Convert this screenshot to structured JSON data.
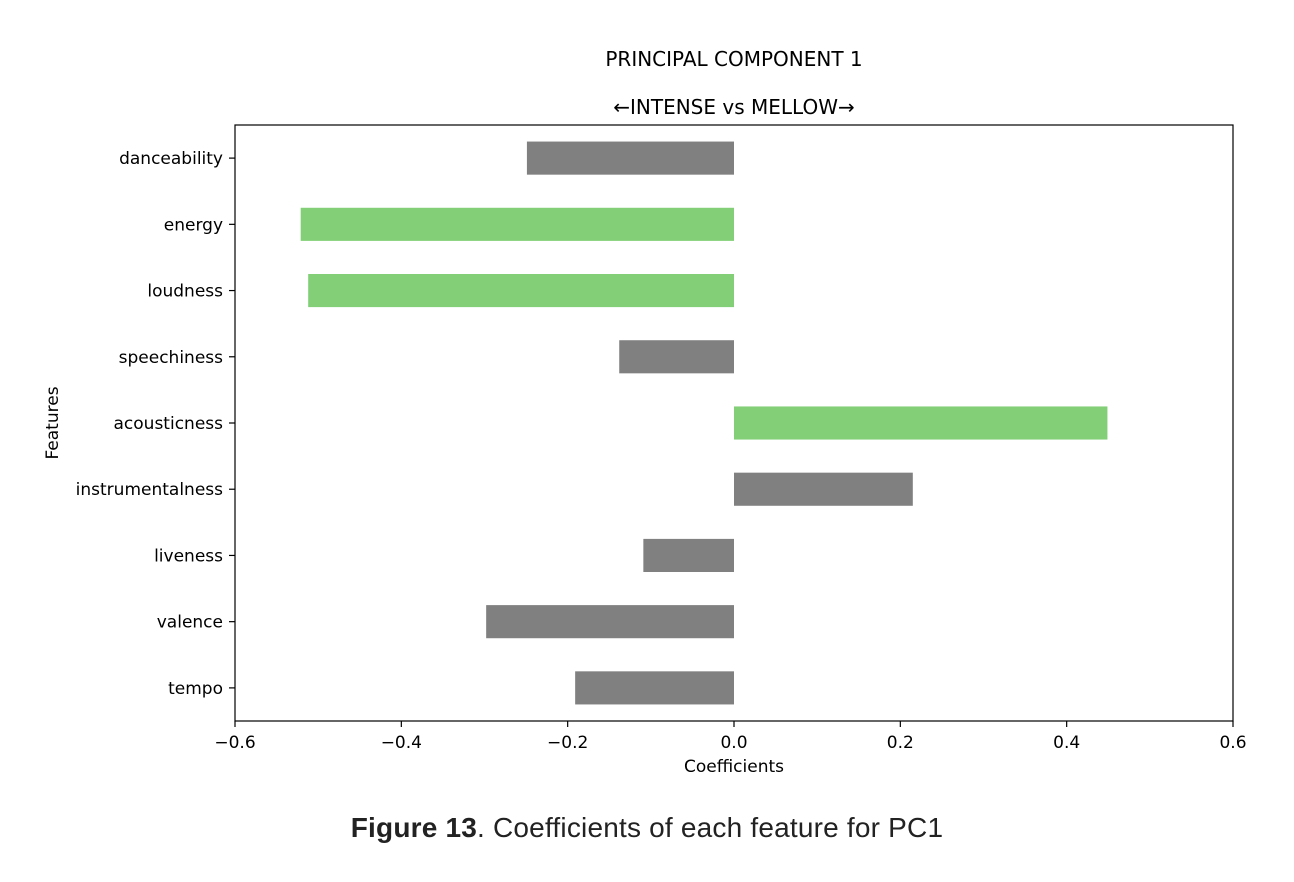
{
  "chart_data": {
    "type": "bar",
    "orientation": "horizontal",
    "title": "PRINCIPAL COMPONENT 1",
    "subtitle": "←INTENSE vs MELLOW→",
    "xlabel": "Coefficients",
    "ylabel": "Features",
    "xlim": [
      -0.6,
      0.6
    ],
    "x_ticks": [
      "−0.6",
      "−0.4",
      "−0.2",
      "0.0",
      "0.2",
      "0.4",
      "0.6"
    ],
    "x_tick_values": [
      -0.6,
      -0.4,
      -0.2,
      0.0,
      0.2,
      0.4,
      0.6
    ],
    "grid": false,
    "categories": [
      "danceability",
      "energy",
      "loudness",
      "speechiness",
      "acousticness",
      "instrumentalness",
      "liveness",
      "valence",
      "tempo"
    ],
    "values": [
      -0.249,
      -0.521,
      -0.512,
      -0.138,
      0.449,
      0.215,
      -0.109,
      -0.298,
      -0.191
    ],
    "highlighted": [
      false,
      true,
      true,
      false,
      true,
      false,
      false,
      false,
      false
    ],
    "colors": {
      "default": "#808080",
      "highlight": "#82cf77"
    }
  },
  "caption": {
    "label": "Figure 13",
    "text": ". Coefficients of each feature for PC1"
  }
}
